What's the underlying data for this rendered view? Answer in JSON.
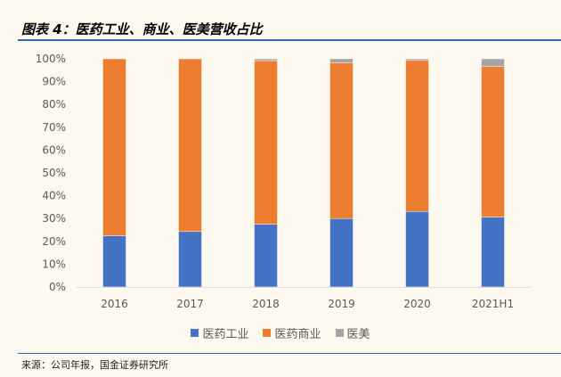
{
  "title": "图表 4：医药工业、商业、医美营收占比",
  "source": "来源：公司年报，国金证券研究所",
  "chart_data": {
    "type": "bar",
    "stacked": true,
    "title": "图表 4：医药工业、商业、医美营收占比",
    "categories": [
      "2016",
      "2017",
      "2018",
      "2019",
      "2020",
      "2021H1"
    ],
    "series": [
      {
        "name": "医药工业",
        "color": "#4472c4",
        "values": [
          22.4,
          24.3,
          27.5,
          30.0,
          33.1,
          30.6
        ]
      },
      {
        "name": "医药商业",
        "color": "#ed7d31",
        "values": [
          77.6,
          75.7,
          71.7,
          68.3,
          66.2,
          66.0
        ]
      },
      {
        "name": "医美",
        "color": "#a5a5a5",
        "values": [
          0.0,
          0.0,
          0.8,
          1.7,
          0.7,
          3.4
        ]
      }
    ],
    "yticks": [
      "0%",
      "10%",
      "20%",
      "30%",
      "40%",
      "50%",
      "60%",
      "70%",
      "80%",
      "90%",
      "100%"
    ],
    "ylim": [
      0,
      100
    ],
    "xlabel": "",
    "ylabel": "",
    "legend": "bottom",
    "grid": false
  }
}
